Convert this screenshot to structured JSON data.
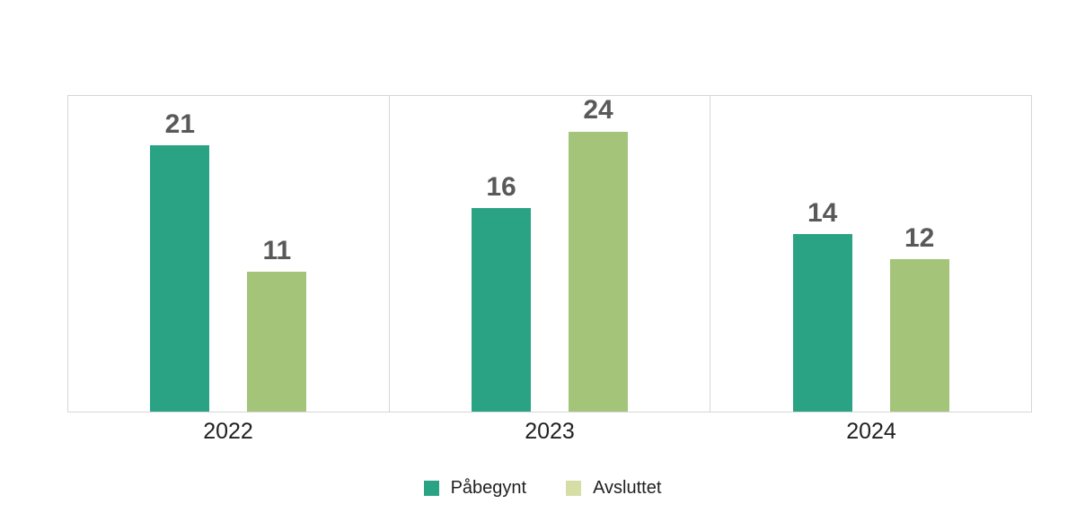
{
  "chart_data": {
    "type": "bar",
    "title": "",
    "xlabel": "",
    "ylabel": "",
    "categories": [
      "2022",
      "2023",
      "2024"
    ],
    "series": [
      {
        "name": "Påbegynt",
        "values": [
          21,
          16,
          14
        ],
        "color": "#2aa384",
        "legend_swatch_color": "#2aa384"
      },
      {
        "name": "Avsluttet",
        "values": [
          11,
          24,
          12
        ],
        "color": "#a4c47a",
        "legend_swatch_color": "#d6dea6"
      }
    ],
    "ylim": [
      0,
      25
    ],
    "legend_position": "bottom-center",
    "grid": {
      "border": true,
      "category_separators": true,
      "line_color": "#d6d6d6"
    },
    "data_label_color": "#595959",
    "category_label_color": "#212121",
    "background_color": "#ffffff"
  }
}
